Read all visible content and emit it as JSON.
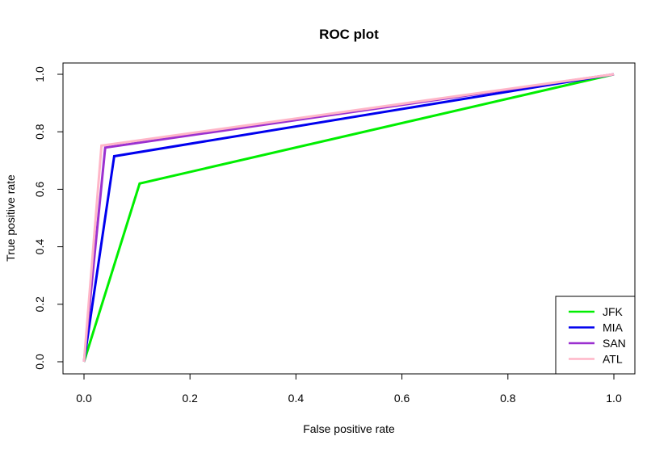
{
  "chart_data": {
    "type": "line",
    "title": "ROC plot",
    "xlabel": "False positive rate",
    "ylabel": "True positive rate",
    "xlim": [
      0,
      1
    ],
    "ylim": [
      0,
      1
    ],
    "x_ticks": [
      "0.0",
      "0.2",
      "0.4",
      "0.6",
      "0.8",
      "1.0"
    ],
    "y_ticks": [
      "0.0",
      "0.2",
      "0.4",
      "0.6",
      "0.8",
      "1.0"
    ],
    "grid": false,
    "legend_position": "bottom-right",
    "series": [
      {
        "name": "JFK",
        "color": "#00ee00",
        "x": [
          0,
          0.105,
          1
        ],
        "y": [
          0,
          0.62,
          1
        ]
      },
      {
        "name": "MIA",
        "color": "#0000ee",
        "x": [
          0,
          0.057,
          1
        ],
        "y": [
          0,
          0.715,
          1
        ]
      },
      {
        "name": "SAN",
        "color": "#9b30d0",
        "x": [
          0,
          0.04,
          1
        ],
        "y": [
          0,
          0.745,
          1
        ]
      },
      {
        "name": "ATL",
        "color": "#ffb6c8",
        "x": [
          0,
          0.033,
          1
        ],
        "y": [
          0,
          0.752,
          1
        ]
      }
    ]
  }
}
